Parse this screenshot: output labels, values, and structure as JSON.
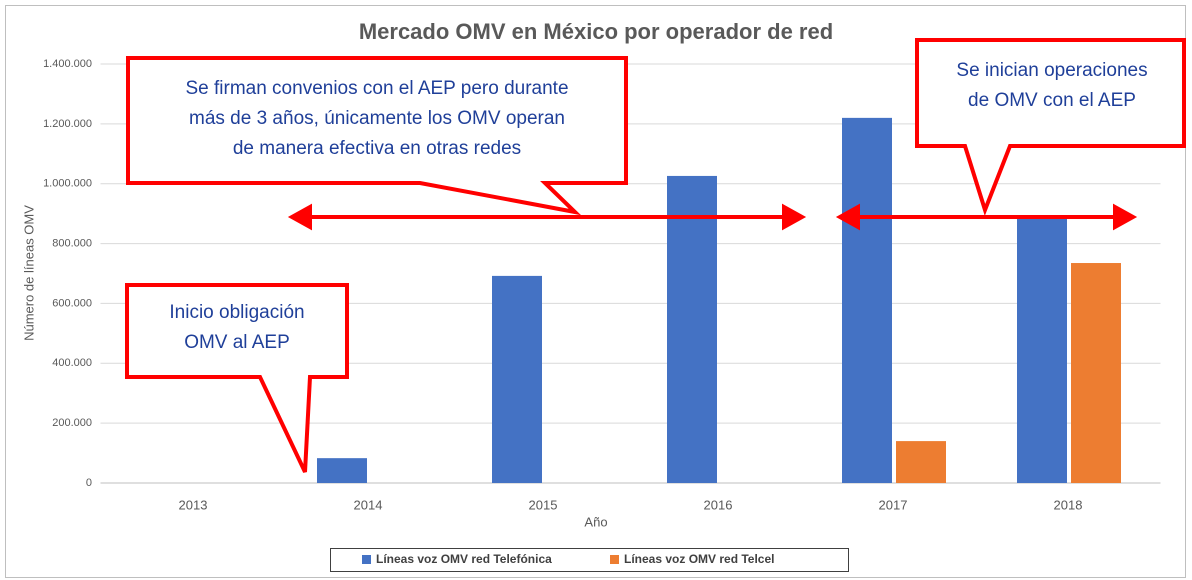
{
  "chart_data": {
    "type": "bar",
    "title": "Mercado OMV en México por operador de red",
    "x_label": "Año",
    "y_label": "Número de líneas OMV",
    "categories": [
      "2013",
      "2014",
      "2015",
      "2016",
      "2017",
      "2018"
    ],
    "series": [
      {
        "name": "Líneas voz OMV red Telefónica",
        "color": "#4472c4",
        "values": [
          null,
          83000,
          692000,
          1026000,
          1220000,
          885000
        ]
      },
      {
        "name": "Líneas voz OMV red Telcel",
        "color": "#ed7d31",
        "values": [
          null,
          null,
          null,
          null,
          140000,
          735000
        ]
      }
    ],
    "ylim": [
      0,
      1400000
    ],
    "yticks": [
      0,
      {
        "value": 200000,
        "label": "200.000"
      },
      {
        "value": 400000,
        "label": "400.000"
      },
      {
        "value": 600000,
        "label": "600.000"
      },
      {
        "value": 800000,
        "label": "800.000"
      },
      {
        "value": 1000000,
        "label": "1.000.000"
      },
      {
        "value": 1200000,
        "label": "1.200.000"
      },
      {
        "value": 1400000,
        "label": "1.400.000"
      }
    ],
    "grid": true,
    "legend": "bottom",
    "annotations": [
      {
        "lines": [
          "Se firman convenios con el AEP pero durante",
          "más de 3 años, únicamente los OMV operan",
          "de manera efectiva en otras redes"
        ]
      },
      {
        "lines": [
          "Se inician operaciones",
          "de OMV con el AEP"
        ]
      },
      {
        "lines": [
          "Inicio obligación",
          "OMV al AEP"
        ]
      }
    ]
  }
}
